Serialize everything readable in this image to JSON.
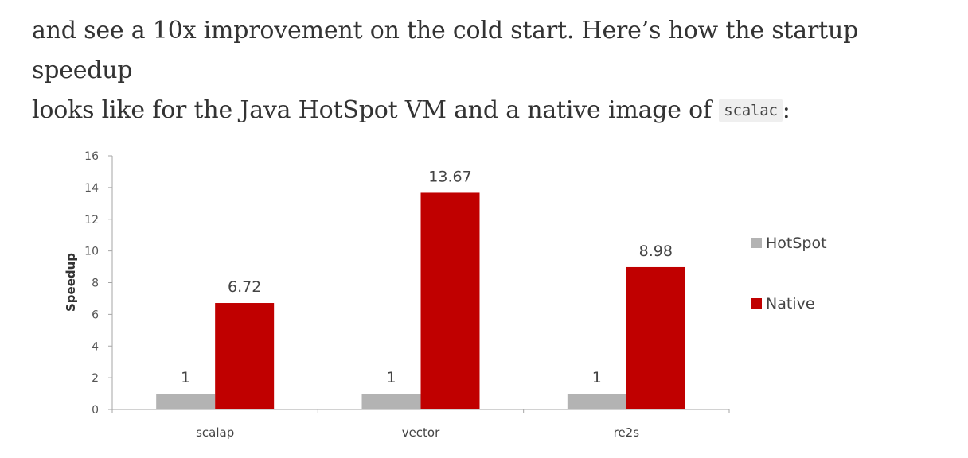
{
  "article": {
    "line1": "and see a 10x improvement on the cold start. Here’s how the startup speedup",
    "line2_before": "looks like for the Java HotSpot VM and a native image of",
    "code": "scalac",
    "line2_after": ":"
  },
  "chart_data": {
    "type": "bar",
    "title": "",
    "xlabel": "",
    "ylabel": "Speedup",
    "ylim": [
      0,
      16
    ],
    "yticks": [
      0,
      2,
      4,
      6,
      8,
      10,
      12,
      14,
      16
    ],
    "categories": [
      "scalap",
      "vector",
      "re2s"
    ],
    "series": [
      {
        "name": "HotSpot",
        "color": "#b3b3b3",
        "values": [
          1,
          1,
          1
        ],
        "labels": [
          "1",
          "1",
          "1"
        ]
      },
      {
        "name": "Native",
        "color": "#c00000",
        "values": [
          6.72,
          13.67,
          8.98
        ],
        "labels": [
          "6.72",
          "13.67",
          "8.98"
        ]
      }
    ],
    "grid": false,
    "legend": "right"
  }
}
